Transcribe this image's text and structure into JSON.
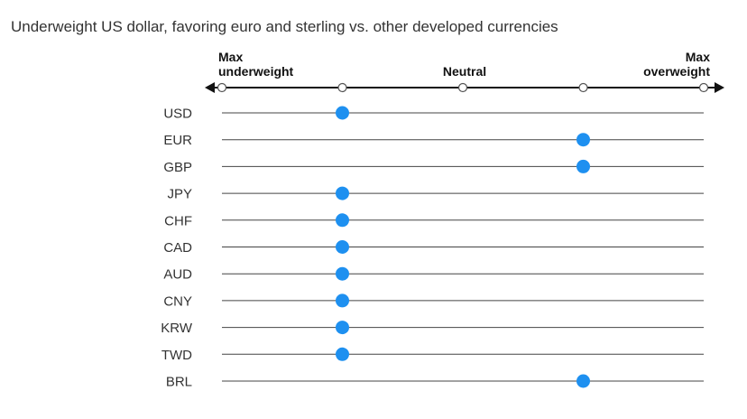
{
  "title": "Underweight US dollar, favoring euro and sterling vs. other developed currencies",
  "chart_data": {
    "type": "scatter",
    "title": "Underweight US dollar, favoring euro and sterling vs. other developed currencies",
    "scale": {
      "positions": [
        1,
        2,
        3,
        4,
        5
      ],
      "left_label": [
        "Max",
        "underweight"
      ],
      "center_label": "Neutral",
      "right_label": [
        "Max",
        "overweight"
      ]
    },
    "categories": [
      "USD",
      "EUR",
      "GBP",
      "JPY",
      "CHF",
      "CAD",
      "AUD",
      "CNY",
      "KRW",
      "TWD",
      "BRL"
    ],
    "values": [
      2,
      4,
      4,
      2,
      2,
      2,
      2,
      2,
      2,
      2,
      4
    ],
    "colors": {
      "dot": "#1e90f0",
      "line": "#444444",
      "axis": "#111111"
    }
  }
}
